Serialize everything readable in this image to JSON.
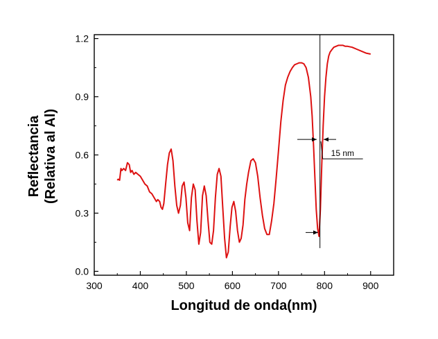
{
  "chart_data": {
    "type": "line",
    "xlabel": "Longitud de onda(nm)",
    "ylabel_lines": [
      "Reflectancia",
      "(Relativa al Al)"
    ],
    "xlim": [
      300,
      950
    ],
    "ylim": [
      -0.02,
      1.22
    ],
    "xticks": [
      300,
      400,
      500,
      600,
      700,
      800,
      900
    ],
    "yticks": [
      0.0,
      0.3,
      0.6,
      0.9,
      1.2
    ],
    "ytick_labels": [
      "0.0",
      "0.3",
      "0.6",
      "0.9",
      "1.2"
    ],
    "series": [
      {
        "color": "#dd1111",
        "x": [
          350,
          352,
          355,
          358,
          360,
          364,
          368,
          372,
          376,
          379,
          382,
          386,
          390,
          395,
          400,
          405,
          410,
          415,
          420,
          425,
          430,
          435,
          438,
          442,
          445,
          448,
          451,
          455,
          459,
          463,
          467,
          471,
          475,
          479,
          483,
          487,
          491,
          495,
          499,
          503,
          507,
          511,
          515,
          519,
          523,
          527,
          531,
          535,
          539,
          543,
          547,
          551,
          555,
          559,
          563,
          567,
          571,
          575,
          579,
          583,
          587,
          591,
          595,
          599,
          603,
          607,
          611,
          615,
          619,
          623,
          627,
          631,
          635,
          640,
          645,
          650,
          655,
          660,
          665,
          670,
          675,
          680,
          685,
          690,
          695,
          700,
          705,
          710,
          715,
          720,
          725,
          730,
          735,
          740,
          745,
          750,
          755,
          760,
          765,
          770,
          773,
          776,
          779,
          782,
          785,
          788,
          791,
          794,
          797,
          800,
          803,
          806,
          809,
          812,
          815,
          820,
          825,
          830,
          835,
          840,
          845,
          850,
          860,
          870,
          880,
          890,
          900
        ],
        "y": [
          0.47,
          0.475,
          0.47,
          0.53,
          0.52,
          0.53,
          0.52,
          0.56,
          0.55,
          0.51,
          0.52,
          0.5,
          0.51,
          0.5,
          0.49,
          0.47,
          0.45,
          0.44,
          0.41,
          0.4,
          0.38,
          0.36,
          0.37,
          0.36,
          0.33,
          0.32,
          0.35,
          0.45,
          0.55,
          0.61,
          0.63,
          0.57,
          0.44,
          0.34,
          0.3,
          0.34,
          0.44,
          0.46,
          0.38,
          0.25,
          0.21,
          0.38,
          0.45,
          0.42,
          0.26,
          0.14,
          0.2,
          0.39,
          0.44,
          0.39,
          0.26,
          0.15,
          0.14,
          0.21,
          0.38,
          0.5,
          0.53,
          0.49,
          0.33,
          0.17,
          0.07,
          0.1,
          0.23,
          0.33,
          0.36,
          0.31,
          0.21,
          0.15,
          0.17,
          0.24,
          0.37,
          0.45,
          0.51,
          0.57,
          0.58,
          0.56,
          0.49,
          0.38,
          0.29,
          0.22,
          0.19,
          0.19,
          0.26,
          0.35,
          0.48,
          0.62,
          0.77,
          0.88,
          0.96,
          1.0,
          1.03,
          1.05,
          1.065,
          1.07,
          1.075,
          1.075,
          1.07,
          1.05,
          1.0,
          0.9,
          0.8,
          0.65,
          0.48,
          0.32,
          0.22,
          0.18,
          0.32,
          0.55,
          0.75,
          0.9,
          1.0,
          1.07,
          1.11,
          1.13,
          1.14,
          1.155,
          1.16,
          1.165,
          1.165,
          1.165,
          1.16,
          1.16,
          1.155,
          1.145,
          1.135,
          1.125,
          1.12
        ]
      }
    ],
    "annotations": [
      {
        "text": "15 nm"
      }
    ]
  }
}
